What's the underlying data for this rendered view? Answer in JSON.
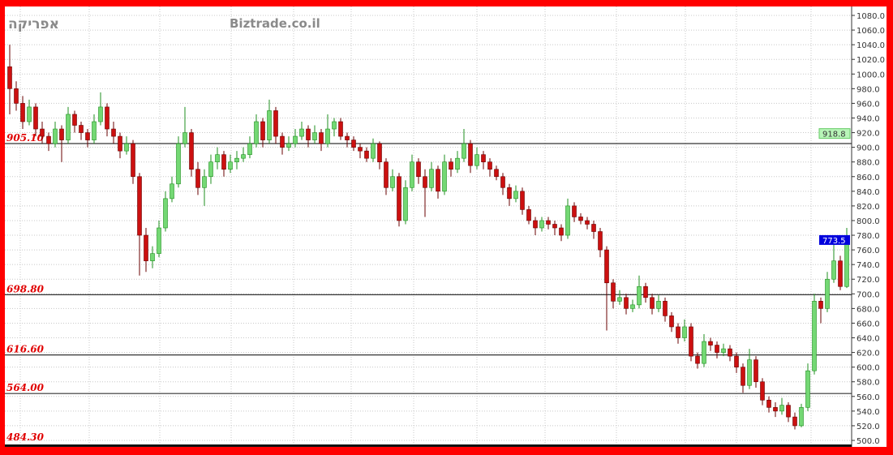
{
  "watermark": {
    "symbol": "אפריקה",
    "site": "Biztrade.co.il"
  },
  "colors": {
    "up_fill": "#74d874",
    "up_border": "#1f8f1f",
    "down_fill": "#cc1010",
    "down_border": "#6a0000",
    "frame": "#ff0000",
    "last_price_box": "#0000dd",
    "marker_box": "#b8f5b8",
    "level_text": "#e00000"
  },
  "chart_data": {
    "type": "candlestick",
    "title": "",
    "xlabel": "",
    "ylabel": "",
    "ylim": [
      500,
      1080
    ],
    "y_ticks": [
      "500.0",
      "520.0",
      "540.0",
      "560.0",
      "580.0",
      "600.0",
      "620.0",
      "640.0",
      "660.0",
      "680.0",
      "700.0",
      "720.0",
      "740.0",
      "760.0",
      "780.0",
      "800.0",
      "820.0",
      "840.0",
      "860.0",
      "880.0",
      "900.0",
      "920.0",
      "940.0",
      "960.0",
      "980.0",
      "1000.0",
      "1020.0",
      "1040.0",
      "1060.0",
      "1080.0"
    ],
    "grid": true,
    "levels": [
      {
        "value": 905.1,
        "label": "905.10"
      },
      {
        "value": 698.8,
        "label": "698.80"
      },
      {
        "value": 616.6,
        "label": "616.60"
      },
      {
        "value": 564.0,
        "label": "564.00"
      },
      {
        "value": 484.3,
        "label": "484.30"
      }
    ],
    "marker": {
      "value": 918.8,
      "label": "918.8"
    },
    "last_price": {
      "value": 773.5,
      "label": "773.5"
    },
    "candles_ohlc": [
      [
        1010,
        1040,
        945,
        980
      ],
      [
        980,
        990,
        950,
        960
      ],
      [
        960,
        970,
        925,
        935
      ],
      [
        935,
        965,
        930,
        955
      ],
      [
        955,
        960,
        915,
        925
      ],
      [
        925,
        935,
        905,
        915
      ],
      [
        915,
        920,
        895,
        905
      ],
      [
        905,
        935,
        900,
        925
      ],
      [
        925,
        930,
        880,
        910
      ],
      [
        910,
        955,
        905,
        945
      ],
      [
        945,
        950,
        920,
        930
      ],
      [
        930,
        935,
        910,
        920
      ],
      [
        920,
        925,
        900,
        910
      ],
      [
        910,
        945,
        905,
        935
      ],
      [
        935,
        975,
        930,
        955
      ],
      [
        955,
        960,
        915,
        925
      ],
      [
        925,
        935,
        905,
        915
      ],
      [
        915,
        920,
        885,
        895
      ],
      [
        895,
        915,
        890,
        905
      ],
      [
        905,
        910,
        850,
        860
      ],
      [
        860,
        865,
        725,
        780
      ],
      [
        780,
        790,
        730,
        745
      ],
      [
        745,
        765,
        735,
        755
      ],
      [
        755,
        800,
        750,
        790
      ],
      [
        790,
        840,
        785,
        830
      ],
      [
        830,
        860,
        825,
        850
      ],
      [
        850,
        915,
        845,
        905
      ],
      [
        905,
        955,
        900,
        920
      ],
      [
        920,
        925,
        860,
        870
      ],
      [
        870,
        880,
        835,
        845
      ],
      [
        845,
        870,
        820,
        860
      ],
      [
        860,
        890,
        850,
        880
      ],
      [
        880,
        900,
        870,
        890
      ],
      [
        890,
        895,
        860,
        870
      ],
      [
        870,
        890,
        865,
        880
      ],
      [
        880,
        895,
        870,
        885
      ],
      [
        885,
        900,
        880,
        890
      ],
      [
        890,
        915,
        885,
        905
      ],
      [
        905,
        945,
        900,
        935
      ],
      [
        935,
        940,
        900,
        910
      ],
      [
        910,
        965,
        905,
        950
      ],
      [
        950,
        955,
        905,
        915
      ],
      [
        915,
        920,
        890,
        900
      ],
      [
        900,
        915,
        895,
        905
      ],
      [
        905,
        925,
        900,
        915
      ],
      [
        915,
        935,
        910,
        925
      ],
      [
        925,
        930,
        900,
        910
      ],
      [
        910,
        930,
        905,
        920
      ],
      [
        920,
        925,
        895,
        905
      ],
      [
        905,
        945,
        900,
        925
      ],
      [
        925,
        940,
        915,
        935
      ],
      [
        935,
        940,
        910,
        915
      ],
      [
        915,
        920,
        900,
        910
      ],
      [
        910,
        915,
        895,
        900
      ],
      [
        900,
        905,
        885,
        895
      ],
      [
        895,
        900,
        880,
        885
      ],
      [
        885,
        912,
        880,
        905
      ],
      [
        905,
        908,
        870,
        880
      ],
      [
        880,
        885,
        835,
        845
      ],
      [
        845,
        870,
        840,
        860
      ],
      [
        860,
        865,
        792,
        800
      ],
      [
        800,
        855,
        795,
        845
      ],
      [
        845,
        890,
        840,
        880
      ],
      [
        880,
        885,
        850,
        860
      ],
      [
        860,
        870,
        805,
        845
      ],
      [
        845,
        880,
        840,
        870
      ],
      [
        870,
        875,
        830,
        840
      ],
      [
        840,
        890,
        835,
        880
      ],
      [
        880,
        885,
        860,
        870
      ],
      [
        870,
        895,
        865,
        885
      ],
      [
        885,
        925,
        880,
        905
      ],
      [
        905,
        910,
        865,
        875
      ],
      [
        875,
        900,
        870,
        890
      ],
      [
        890,
        895,
        870,
        880
      ],
      [
        880,
        885,
        860,
        870
      ],
      [
        870,
        875,
        855,
        860
      ],
      [
        860,
        865,
        835,
        845
      ],
      [
        845,
        850,
        820,
        830
      ],
      [
        830,
        848,
        825,
        840
      ],
      [
        840,
        845,
        808,
        815
      ],
      [
        815,
        820,
        795,
        800
      ],
      [
        800,
        805,
        780,
        790
      ],
      [
        790,
        805,
        785,
        800
      ],
      [
        800,
        805,
        788,
        795
      ],
      [
        795,
        800,
        780,
        790
      ],
      [
        790,
        795,
        772,
        780
      ],
      [
        780,
        830,
        775,
        820
      ],
      [
        820,
        825,
        798,
        805
      ],
      [
        805,
        810,
        795,
        800
      ],
      [
        800,
        805,
        788,
        795
      ],
      [
        795,
        800,
        775,
        785
      ],
      [
        785,
        790,
        750,
        760
      ],
      [
        760,
        765,
        650,
        715
      ],
      [
        715,
        720,
        680,
        690
      ],
      [
        690,
        705,
        685,
        695
      ],
      [
        695,
        700,
        672,
        680
      ],
      [
        680,
        692,
        675,
        685
      ],
      [
        685,
        725,
        680,
        710
      ],
      [
        710,
        715,
        688,
        695
      ],
      [
        695,
        700,
        672,
        680
      ],
      [
        680,
        698,
        675,
        690
      ],
      [
        690,
        695,
        662,
        670
      ],
      [
        670,
        675,
        648,
        655
      ],
      [
        655,
        660,
        632,
        640
      ],
      [
        640,
        665,
        635,
        655
      ],
      [
        655,
        660,
        608,
        615
      ],
      [
        615,
        620,
        598,
        605
      ],
      [
        605,
        645,
        600,
        635
      ],
      [
        635,
        640,
        622,
        630
      ],
      [
        630,
        635,
        612,
        620
      ],
      [
        620,
        632,
        615,
        625
      ],
      [
        625,
        630,
        608,
        615
      ],
      [
        615,
        620,
        592,
        600
      ],
      [
        600,
        605,
        565,
        575
      ],
      [
        575,
        625,
        570,
        610
      ],
      [
        610,
        615,
        572,
        580
      ],
      [
        580,
        585,
        548,
        555
      ],
      [
        555,
        560,
        538,
        545
      ],
      [
        545,
        552,
        532,
        540
      ],
      [
        540,
        558,
        535,
        548
      ],
      [
        548,
        552,
        525,
        532
      ],
      [
        532,
        538,
        515,
        520
      ],
      [
        520,
        550,
        518,
        545
      ],
      [
        545,
        605,
        540,
        595
      ],
      [
        595,
        700,
        590,
        690
      ],
      [
        690,
        695,
        660,
        680
      ],
      [
        680,
        730,
        675,
        720
      ],
      [
        720,
        775,
        715,
        745
      ],
      [
        745,
        752,
        705,
        710
      ],
      [
        710,
        790,
        708,
        773.5
      ]
    ]
  }
}
